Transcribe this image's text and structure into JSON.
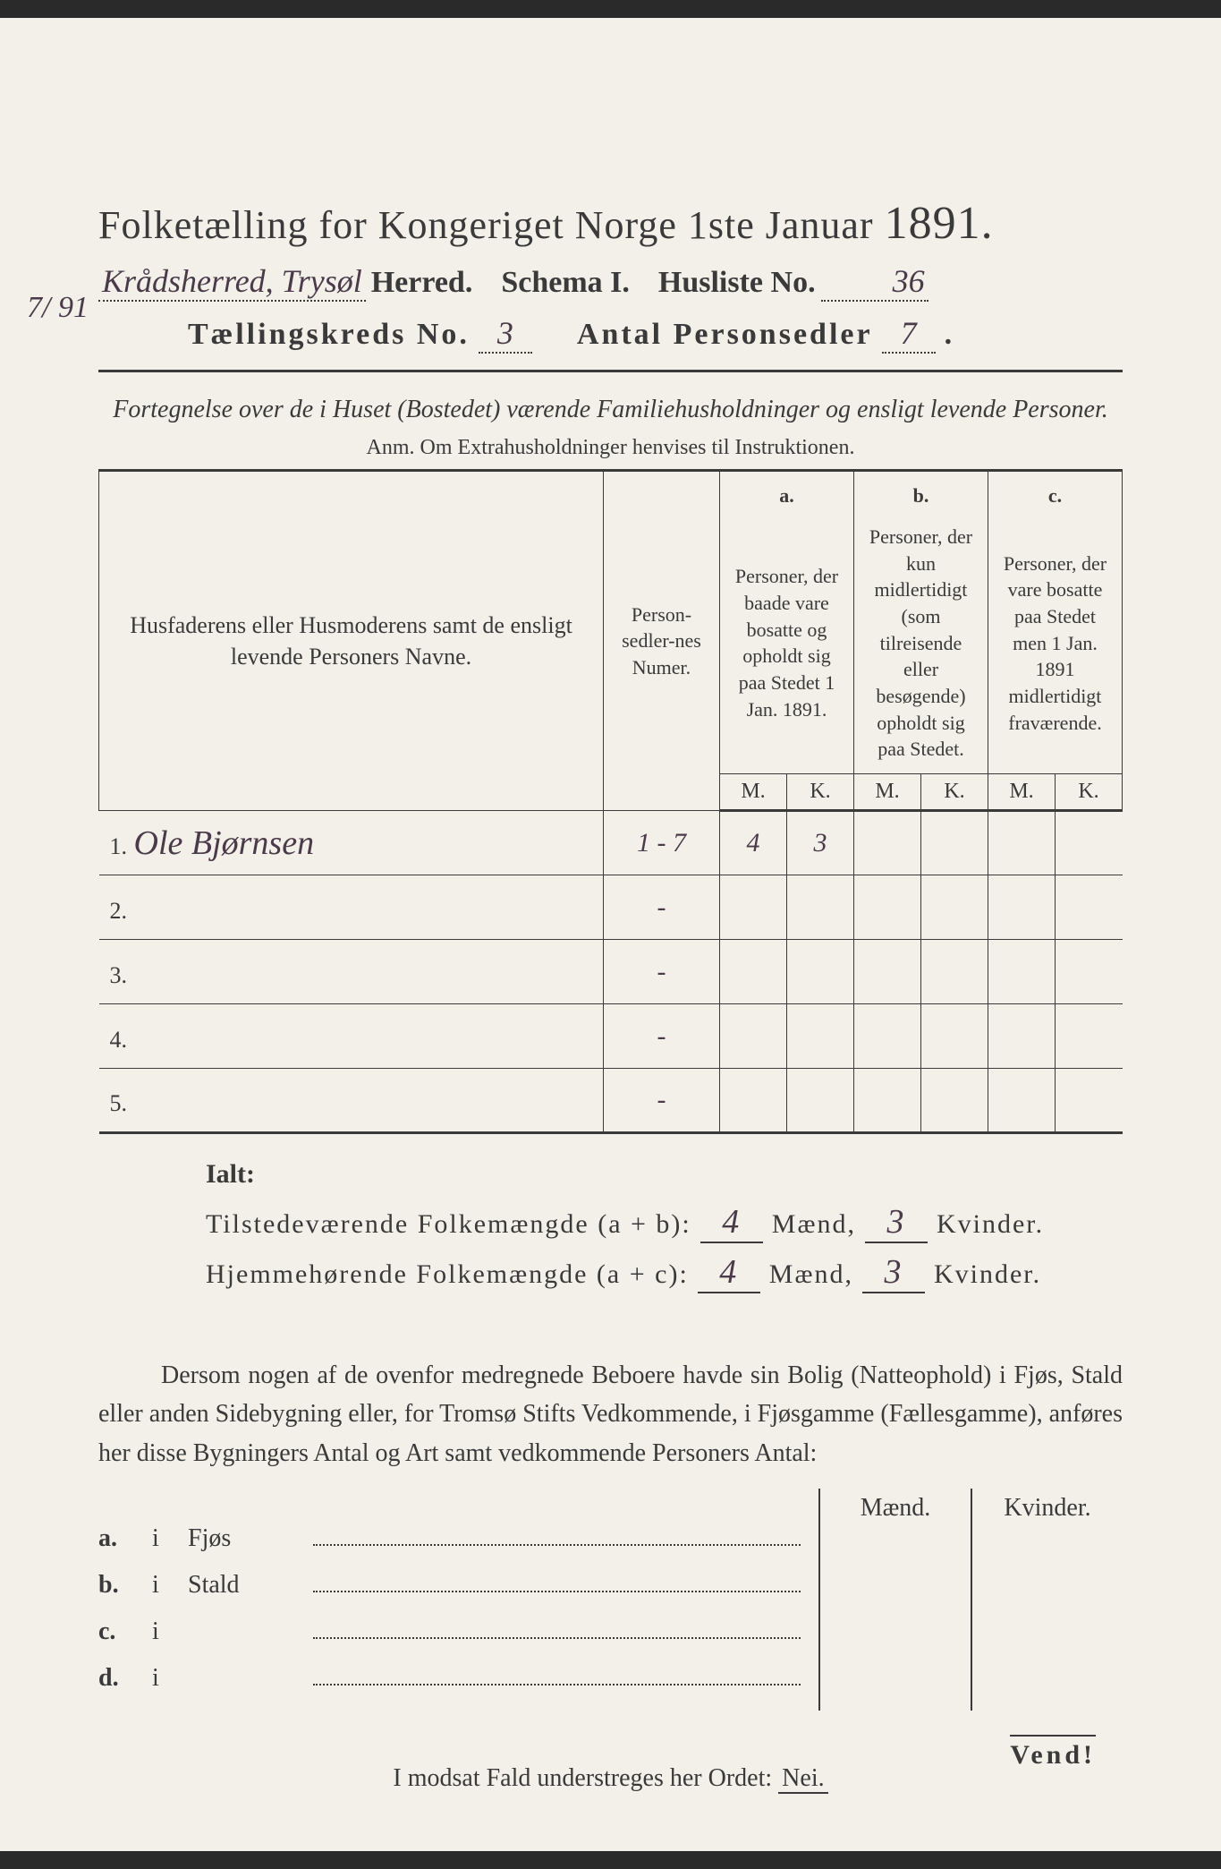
{
  "colors": {
    "paper_bg": "#f2f0e8",
    "ink": "#3a3a3a",
    "handwriting": "#4a3a4a",
    "outer_bg": "#2a2a2a"
  },
  "typography": {
    "title_fontsize_pt": 33,
    "body_fontsize_pt": 21,
    "handwriting_family": "cursive",
    "print_family": "serif"
  },
  "title": {
    "main": "Folketælling for Kongeriget Norge 1ste Januar",
    "year": "1891."
  },
  "margin_date": "7/ 91",
  "header": {
    "herred_handwritten": "Krådsherred, Trysøl",
    "herred_label": "Herred.",
    "schema_label": "Schema I.",
    "husliste_label": "Husliste No.",
    "husliste_value": "36",
    "kreds_label": "Tællingskreds No.",
    "kreds_value": "3",
    "sedler_label": "Antal Personsedler",
    "sedler_value": "7"
  },
  "subtitle": "Fortegnelse over de i Huset (Bostedet) værende Familiehusholdninger og ensligt levende Personer.",
  "anm": "Anm. Om Extrahusholdninger henvises til Instruktionen.",
  "table": {
    "col_names": "Husfaderens eller Husmoderens samt de ensligt levende Personers Navne.",
    "col_numer": "Person-sedler-nes Numer.",
    "col_a_label": "a.",
    "col_a_text": "Personer, der baade vare bosatte og opholdt sig paa Stedet 1 Jan. 1891.",
    "col_b_label": "b.",
    "col_b_text": "Personer, der kun midlertidigt (som tilreisende eller besøgende) opholdt sig paa Stedet.",
    "col_c_label": "c.",
    "col_c_text": "Personer, der vare bosatte paa Stedet men 1 Jan. 1891 midlertidigt fraværende.",
    "mk_M": "M.",
    "mk_K": "K.",
    "rows": [
      {
        "num": "1.",
        "name": "Ole Bjørnsen",
        "numer": "1 - 7",
        "aM": "4",
        "aK": "3",
        "bM": "",
        "bK": "",
        "cM": "",
        "cK": ""
      },
      {
        "num": "2.",
        "name": "",
        "numer": "-",
        "aM": "",
        "aK": "",
        "bM": "",
        "bK": "",
        "cM": "",
        "cK": ""
      },
      {
        "num": "3.",
        "name": "",
        "numer": "-",
        "aM": "",
        "aK": "",
        "bM": "",
        "bK": "",
        "cM": "",
        "cK": ""
      },
      {
        "num": "4.",
        "name": "",
        "numer": "-",
        "aM": "",
        "aK": "",
        "bM": "",
        "bK": "",
        "cM": "",
        "cK": ""
      },
      {
        "num": "5.",
        "name": "",
        "numer": "-",
        "aM": "",
        "aK": "",
        "bM": "",
        "bK": "",
        "cM": "",
        "cK": ""
      }
    ]
  },
  "ialt": {
    "title": "Ialt:",
    "row1_label": "Tilstedeværende Folkemængde (a + b):",
    "row2_label": "Hjemmehørende Folkemængde (a + c):",
    "maend": "Mænd,",
    "kvinder": "Kvinder.",
    "r1_m": "4",
    "r1_k": "3",
    "r2_m": "4",
    "r2_k": "3"
  },
  "paragraph": "Dersom nogen af de ovenfor medregnede Beboere havde sin Bolig (Natteophold) i Fjøs, Stald eller anden Sidebygning eller, for Tromsø Stifts Vedkommende, i Fjøsgamme (Fællesgamme), anføres her disse Bygningers Antal og Art samt vedkommende Personers Antal:",
  "side": {
    "maend": "Mænd.",
    "kvinder": "Kvinder.",
    "rows": [
      {
        "lbl": "a.",
        "i": "i",
        "cat": "Fjøs"
      },
      {
        "lbl": "b.",
        "i": "i",
        "cat": "Stald"
      },
      {
        "lbl": "c.",
        "i": "i",
        "cat": ""
      },
      {
        "lbl": "d.",
        "i": "i",
        "cat": ""
      }
    ]
  },
  "footer": {
    "text_pre": "I modsat Fald understreges her Ordet:",
    "nei": "Nei."
  },
  "vend": "Vend!"
}
